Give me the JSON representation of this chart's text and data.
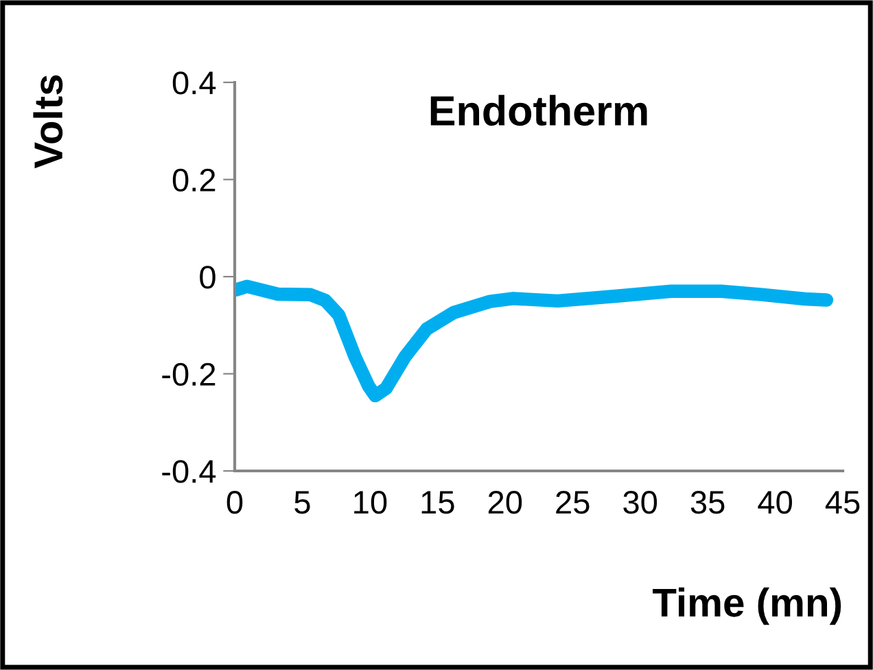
{
  "chart_data": {
    "type": "line",
    "title": "Endotherm",
    "xlabel": "Time (mn)",
    "ylabel": "Volts",
    "xlim": [
      0,
      45
    ],
    "xticks": [
      0,
      5,
      10,
      15,
      20,
      25,
      30,
      35,
      40,
      45
    ],
    "ylim": [
      -0.4,
      0.4
    ],
    "yticks": [
      -0.4,
      -0.2,
      0,
      0.2,
      0.4
    ],
    "grid": false,
    "legend": false,
    "marker": "none",
    "line_style": "solid",
    "series": [
      {
        "color": "#00aeef",
        "x": [
          0.1,
          0.9,
          3.2,
          5.6,
          6.7,
          7.7,
          8.9,
          9.9,
          10.4,
          11.2,
          12.6,
          14.2,
          16.2,
          18.9,
          20.6,
          23.9,
          28.3,
          32.3,
          36,
          39,
          42.2,
          43.8
        ],
        "values": [
          -0.027,
          -0.02,
          -0.036,
          -0.037,
          -0.049,
          -0.079,
          -0.165,
          -0.225,
          -0.245,
          -0.23,
          -0.165,
          -0.108,
          -0.074,
          -0.051,
          -0.045,
          -0.05,
          -0.04,
          -0.03,
          -0.03,
          -0.037,
          -0.046,
          -0.048
        ]
      }
    ]
  }
}
